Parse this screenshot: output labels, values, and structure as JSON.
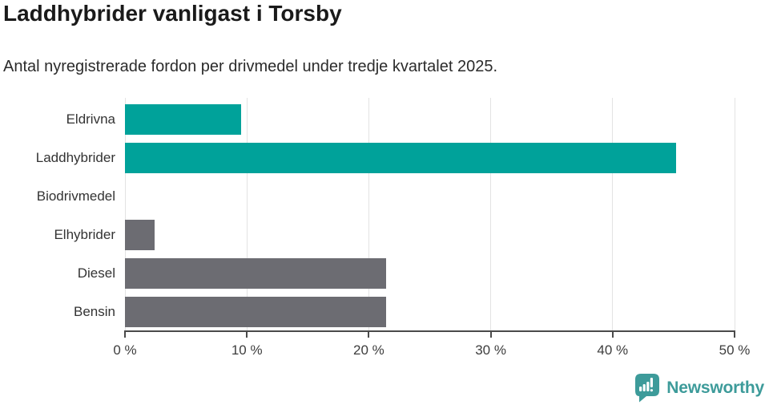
{
  "chart_data": {
    "type": "bar",
    "orientation": "horizontal",
    "title": "Laddhybrider vanligast i Torsby",
    "subtitle": "Antal nyregistrerade fordon per drivmedel under tredje kvartalet 2025.",
    "categories": [
      "Eldrivna",
      "Laddhybrider",
      "Biodrivmedel",
      "Elhybrider",
      "Diesel",
      "Bensin"
    ],
    "values": [
      9.5,
      45.2,
      0,
      2.4,
      21.4,
      21.4
    ],
    "unit": "%",
    "xlim": [
      0,
      50
    ],
    "x_ticks": [
      0,
      10,
      20,
      30,
      40,
      50
    ],
    "x_tick_labels": [
      "0 %",
      "10 %",
      "20 %",
      "30 %",
      "40 %",
      "50 %"
    ],
    "bar_colors": [
      "#00a29a",
      "#00a29a",
      "#6c6c72",
      "#6c6c72",
      "#6c6c72",
      "#6c6c72"
    ],
    "highlight_color": "#00a29a",
    "default_color": "#6c6c72",
    "grid": true,
    "legend": "none"
  },
  "footer": {
    "logo_text": "Newsworthy",
    "logo_color": "#3d9b9a",
    "logo_icon": "bar-chart-speech-bubble-icon"
  }
}
